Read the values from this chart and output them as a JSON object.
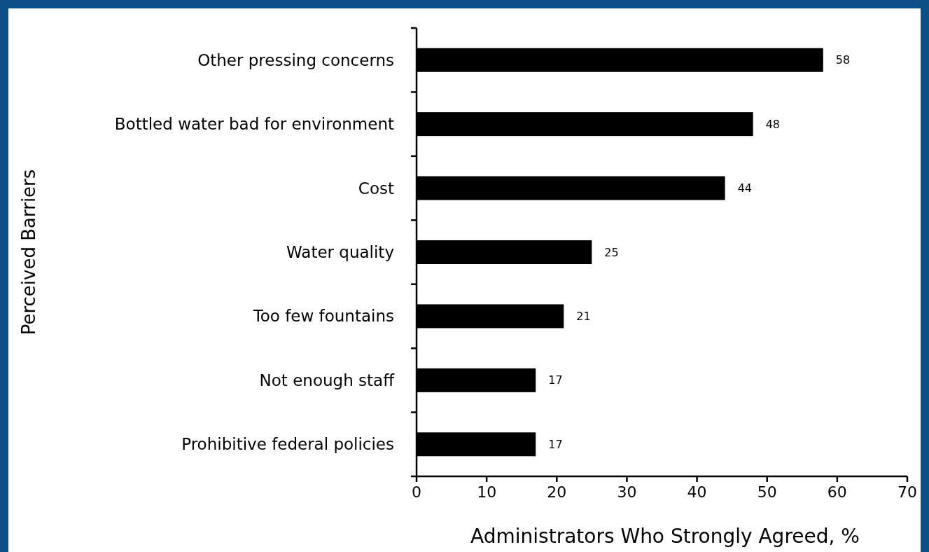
{
  "chart_data": {
    "type": "bar",
    "orientation": "horizontal",
    "xlabel": "Administrators Who Strongly Agreed, %",
    "ylabel": "Perceived Barriers",
    "categories": [
      "Other pressing concerns",
      "Bottled water bad for environment",
      "Cost",
      "Water quality",
      "Too few fountains",
      "Not enough staff",
      "Prohibitive federal policies"
    ],
    "values": [
      58,
      48,
      44,
      25,
      21,
      17,
      17
    ],
    "color": "#000000",
    "xlim": [
      0,
      70
    ],
    "xticks": [
      0,
      10,
      20,
      30,
      40,
      50,
      60,
      70
    ],
    "data_labels": true
  }
}
